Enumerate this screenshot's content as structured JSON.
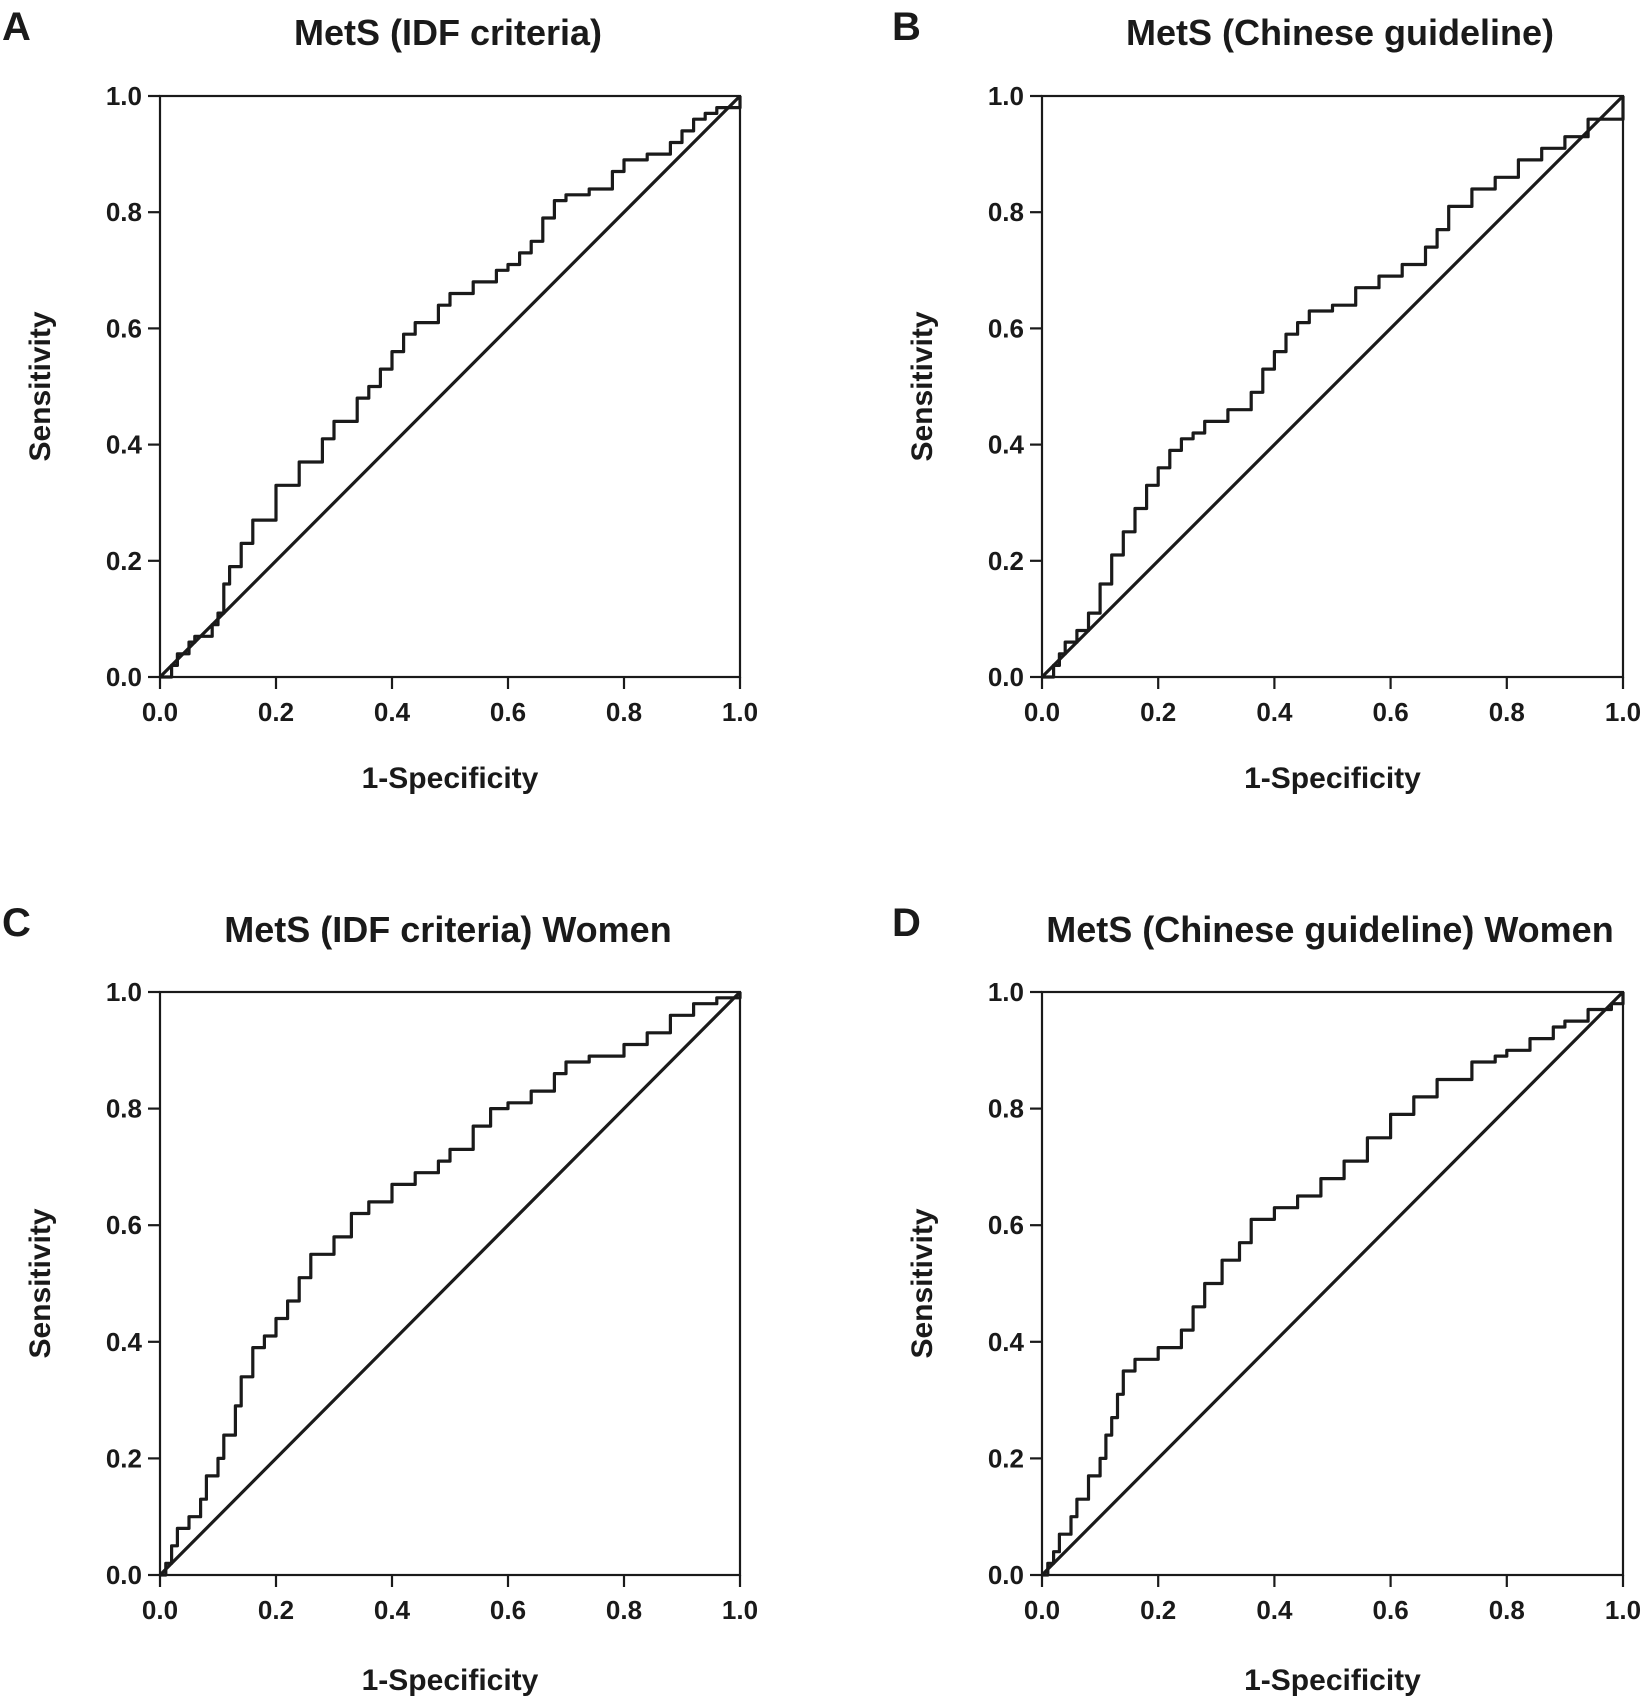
{
  "chart_data": [
    {
      "type": "line",
      "panel_label": "A",
      "title": "MetS (IDF criteria)",
      "xlabel": "1-Specificity",
      "ylabel": "Sensitivity",
      "xlim": [
        0,
        1
      ],
      "ylim": [
        0,
        1
      ],
      "xticks": [
        "0.0",
        "0.2",
        "0.4",
        "0.6",
        "0.8",
        "1.0"
      ],
      "yticks": [
        "0.0",
        "0.2",
        "0.4",
        "0.6",
        "0.8",
        "1.0"
      ],
      "series": [
        {
          "name": "ROC curve",
          "x": [
            0,
            0.02,
            0.03,
            0.05,
            0.06,
            0.09,
            0.1,
            0.11,
            0.12,
            0.14,
            0.16,
            0.2,
            0.24,
            0.28,
            0.3,
            0.34,
            0.36,
            0.38,
            0.4,
            0.42,
            0.44,
            0.48,
            0.5,
            0.54,
            0.58,
            0.6,
            0.62,
            0.64,
            0.66,
            0.68,
            0.7,
            0.74,
            0.78,
            0.8,
            0.84,
            0.88,
            0.9,
            0.92,
            0.94,
            0.96,
            1.0
          ],
          "y": [
            0,
            0.02,
            0.04,
            0.06,
            0.07,
            0.09,
            0.11,
            0.16,
            0.19,
            0.23,
            0.27,
            0.33,
            0.37,
            0.41,
            0.44,
            0.48,
            0.5,
            0.53,
            0.56,
            0.59,
            0.61,
            0.64,
            0.66,
            0.68,
            0.7,
            0.71,
            0.73,
            0.75,
            0.79,
            0.82,
            0.83,
            0.84,
            0.87,
            0.89,
            0.9,
            0.92,
            0.94,
            0.96,
            0.97,
            0.98,
            1.0
          ]
        },
        {
          "name": "Reference line",
          "x": [
            0,
            1
          ],
          "y": [
            0,
            1
          ]
        }
      ]
    },
    {
      "type": "line",
      "panel_label": "B",
      "title": "MetS (Chinese guideline)",
      "xlabel": "1-Specificity",
      "ylabel": "Sensitivity",
      "xlim": [
        0,
        1
      ],
      "ylim": [
        0,
        1
      ],
      "xticks": [
        "0.0",
        "0.2",
        "0.4",
        "0.6",
        "0.8",
        "1.0"
      ],
      "yticks": [
        "0.0",
        "0.2",
        "0.4",
        "0.6",
        "0.8",
        "1.0"
      ],
      "series": [
        {
          "name": "ROC curve",
          "x": [
            0,
            0.02,
            0.03,
            0.04,
            0.06,
            0.08,
            0.1,
            0.12,
            0.14,
            0.16,
            0.18,
            0.2,
            0.22,
            0.24,
            0.26,
            0.28,
            0.32,
            0.36,
            0.38,
            0.4,
            0.42,
            0.44,
            0.46,
            0.5,
            0.54,
            0.58,
            0.62,
            0.66,
            0.68,
            0.7,
            0.74,
            0.78,
            0.82,
            0.86,
            0.9,
            0.94,
            1.0
          ],
          "y": [
            0,
            0.02,
            0.04,
            0.06,
            0.08,
            0.11,
            0.16,
            0.21,
            0.25,
            0.29,
            0.33,
            0.36,
            0.39,
            0.41,
            0.42,
            0.44,
            0.46,
            0.49,
            0.53,
            0.56,
            0.59,
            0.61,
            0.63,
            0.64,
            0.67,
            0.69,
            0.71,
            0.74,
            0.77,
            0.81,
            0.84,
            0.86,
            0.89,
            0.91,
            0.93,
            0.96,
            1.0
          ]
        },
        {
          "name": "Reference line",
          "x": [
            0,
            1
          ],
          "y": [
            0,
            1
          ]
        }
      ]
    },
    {
      "type": "line",
      "panel_label": "C",
      "title": "MetS (IDF criteria) Women",
      "xlabel": "1-Specificity",
      "ylabel": "Sensitivity",
      "xlim": [
        0,
        1
      ],
      "ylim": [
        0,
        1
      ],
      "xticks": [
        "0.0",
        "0.2",
        "0.4",
        "0.6",
        "0.8",
        "1.0"
      ],
      "yticks": [
        "0.0",
        "0.2",
        "0.4",
        "0.6",
        "0.8",
        "1.0"
      ],
      "series": [
        {
          "name": "ROC curve",
          "x": [
            0,
            0.01,
            0.02,
            0.03,
            0.05,
            0.07,
            0.08,
            0.1,
            0.11,
            0.13,
            0.14,
            0.16,
            0.18,
            0.2,
            0.22,
            0.24,
            0.26,
            0.3,
            0.33,
            0.36,
            0.4,
            0.44,
            0.48,
            0.5,
            0.54,
            0.57,
            0.6,
            0.64,
            0.68,
            0.7,
            0.74,
            0.8,
            0.84,
            0.88,
            0.92,
            0.96,
            1.0
          ],
          "y": [
            0,
            0.02,
            0.05,
            0.08,
            0.1,
            0.13,
            0.17,
            0.2,
            0.24,
            0.29,
            0.34,
            0.39,
            0.41,
            0.44,
            0.47,
            0.51,
            0.55,
            0.58,
            0.62,
            0.64,
            0.67,
            0.69,
            0.71,
            0.73,
            0.77,
            0.8,
            0.81,
            0.83,
            0.86,
            0.88,
            0.89,
            0.91,
            0.93,
            0.96,
            0.98,
            0.99,
            1.0
          ]
        },
        {
          "name": "Reference line",
          "x": [
            0,
            1
          ],
          "y": [
            0,
            1
          ]
        }
      ]
    },
    {
      "type": "line",
      "panel_label": "D",
      "title": "MetS (Chinese guideline) Women",
      "xlabel": "1-Specificity",
      "ylabel": "Sensitivity",
      "xlim": [
        0,
        1
      ],
      "ylim": [
        0,
        1
      ],
      "xticks": [
        "0.0",
        "0.2",
        "0.4",
        "0.6",
        "0.8",
        "1.0"
      ],
      "yticks": [
        "0.0",
        "0.2",
        "0.4",
        "0.6",
        "0.8",
        "1.0"
      ],
      "series": [
        {
          "name": "ROC curve",
          "x": [
            0,
            0.01,
            0.02,
            0.03,
            0.05,
            0.06,
            0.08,
            0.1,
            0.11,
            0.12,
            0.13,
            0.14,
            0.16,
            0.2,
            0.24,
            0.26,
            0.28,
            0.31,
            0.34,
            0.36,
            0.4,
            0.44,
            0.48,
            0.52,
            0.56,
            0.6,
            0.64,
            0.68,
            0.74,
            0.78,
            0.8,
            0.84,
            0.88,
            0.9,
            0.94,
            0.98,
            1.0
          ],
          "y": [
            0,
            0.02,
            0.04,
            0.07,
            0.1,
            0.13,
            0.17,
            0.2,
            0.24,
            0.27,
            0.31,
            0.35,
            0.37,
            0.39,
            0.42,
            0.46,
            0.5,
            0.54,
            0.57,
            0.61,
            0.63,
            0.65,
            0.68,
            0.71,
            0.75,
            0.79,
            0.82,
            0.85,
            0.88,
            0.89,
            0.9,
            0.92,
            0.94,
            0.95,
            0.97,
            0.98,
            1.0
          ]
        },
        {
          "name": "Reference line",
          "x": [
            0,
            1
          ],
          "y": [
            0,
            1
          ]
        }
      ]
    }
  ]
}
